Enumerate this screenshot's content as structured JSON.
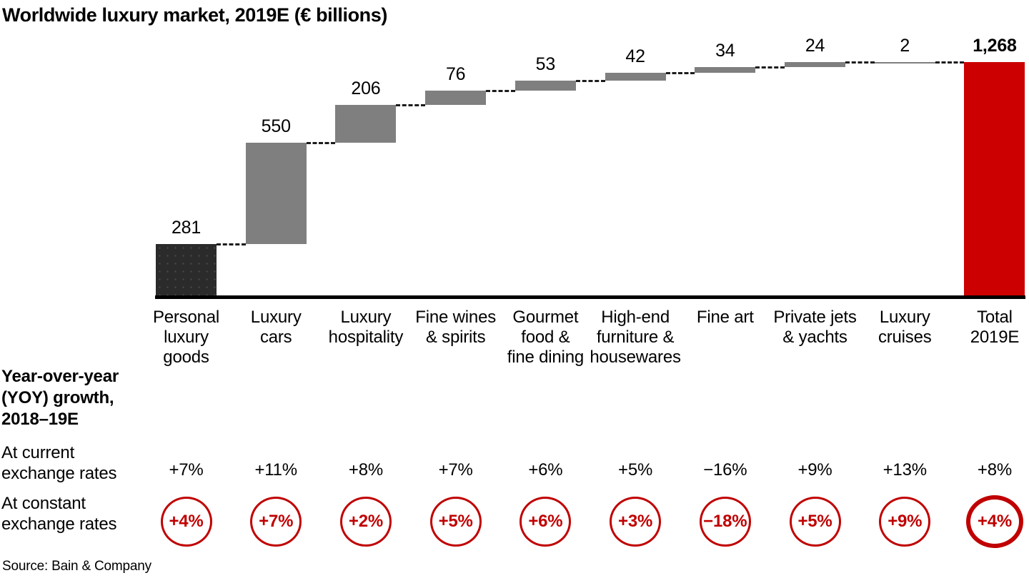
{
  "title": "Worldwide luxury market, 2019E (€ billions)",
  "source": "Source: Bain & Company",
  "yoy": {
    "heading": "Year-over-year\n(YOY) growth,\n2018–19E",
    "current_label": "At current\nexchange rates",
    "constant_label": "At constant\nexchange rates"
  },
  "chart_data": {
    "type": "bar",
    "subtype": "waterfall",
    "title": "Worldwide luxury market, 2019E (€ billions)",
    "unit": "€ billions",
    "ylim": [
      0,
      1268
    ],
    "grid": false,
    "legend": "none",
    "categories": [
      "Personal luxury goods",
      "Luxury cars",
      "Luxury hospitality",
      "Fine wines & spirits",
      "Gourmet food & fine dining",
      "High-end furniture & housewares",
      "Fine art",
      "Private jets & yachts",
      "Luxury cruises",
      "Total 2019E"
    ],
    "category_tick_lines": [
      "Personal\nluxury\ngoods",
      "Luxury\ncars",
      "Luxury\nhospitality",
      "Fine wines\n& spirits",
      "Gourmet\nfood &\nfine dining",
      "High-end\nfurniture &\nhousewares",
      "Fine art",
      "Private jets\n& yachts",
      "Luxury\ncruises",
      "Total\n2019E"
    ],
    "values": [
      281,
      550,
      206,
      76,
      53,
      42,
      34,
      24,
      2,
      1268
    ],
    "value_labels": [
      "281",
      "550",
      "206",
      "76",
      "53",
      "42",
      "34",
      "24",
      "2",
      "1,268"
    ],
    "is_total": [
      false,
      false,
      false,
      false,
      false,
      false,
      false,
      false,
      false,
      true
    ],
    "yoy_current": [
      "+7%",
      "+11%",
      "+8%",
      "+7%",
      "+6%",
      "+5%",
      "−16%",
      "+9%",
      "+13%",
      "+8%"
    ],
    "yoy_constant": [
      "+4%",
      "+7%",
      "+2%",
      "+5%",
      "+6%",
      "+3%",
      "−18%",
      "+5%",
      "+9%",
      "+4%"
    ],
    "colors": {
      "first_bar": "#2b2b2b",
      "segment_bar": "#7f7f7f",
      "total_bar": "#cc0000",
      "circle_red": "#c00000",
      "axis": "#000000",
      "connector": "#1c1c1c"
    }
  }
}
